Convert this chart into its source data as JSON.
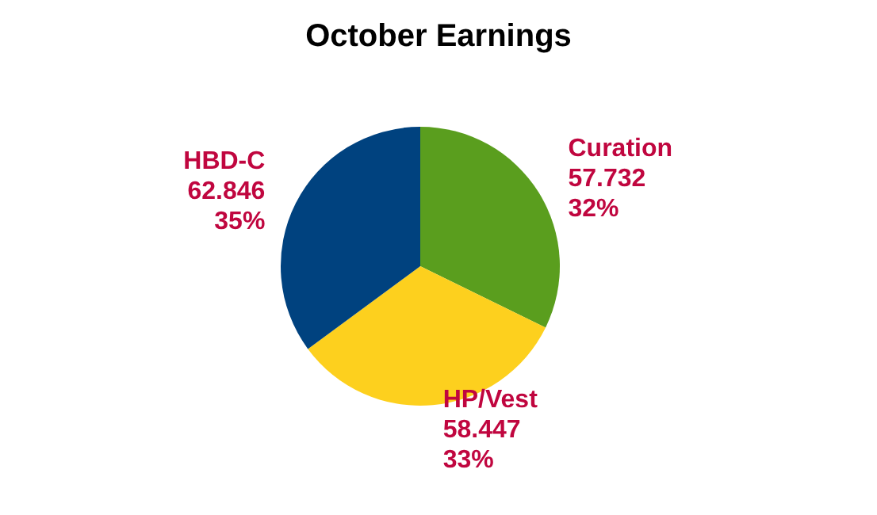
{
  "chart_data": {
    "type": "pie",
    "title": "October Earnings",
    "categories": [
      "Curation",
      "HP/Vest",
      "HBD-C"
    ],
    "values": [
      57.732,
      58.447,
      62.846
    ],
    "colors": [
      "#5a9e1e",
      "#fdd01e",
      "#00427f"
    ],
    "value_labels": [
      "57.732\n32%",
      "58.447\n33%",
      "62.846\n35%"
    ],
    "legend": false
  }
}
